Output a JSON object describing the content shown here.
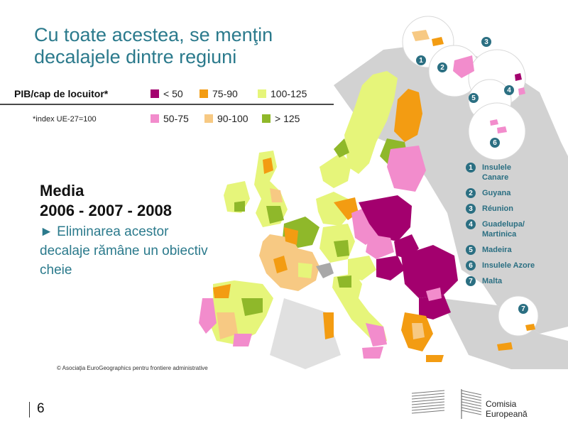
{
  "title": {
    "line1": "Cu toate acestea, se menţin",
    "line2": "decalajele dintre regiuni"
  },
  "legend": {
    "header": "PIB/cap de locuitor*",
    "note": "*index UE-27=100",
    "items": [
      {
        "label": "< 50",
        "color": "#a3006e"
      },
      {
        "label": "75-90",
        "color": "#f39c12"
      },
      {
        "label": "100-125",
        "color": "#e6f57a"
      },
      {
        "label": "50-75",
        "color": "#f28ccc"
      },
      {
        "label": "90-100",
        "color": "#f7c983"
      },
      {
        "label": "> 125",
        "color": "#8fb82a"
      }
    ]
  },
  "media": {
    "heading1": "Media",
    "heading2": "2006 - 2007 - 2008",
    "text": "► Eliminarea acestor decalaje rămâne un obiectiv cheie"
  },
  "islands": [
    {
      "num": "1",
      "label": "Insulele Canare"
    },
    {
      "num": "2",
      "label": "Guyana"
    },
    {
      "num": "3",
      "label": "Réunion"
    },
    {
      "num": "4",
      "label": "Guadelupa/ Martinica"
    },
    {
      "num": "5",
      "label": "Madeira"
    },
    {
      "num": "6",
      "label": "Insulele Azore"
    },
    {
      "num": "7",
      "label": "Malta"
    }
  ],
  "copyright": "© Asociaţia EuroGeographics pentru frontiere administrative",
  "slide_number": "6",
  "org": {
    "line1": "Comisia",
    "line2": "Europeană"
  },
  "colors": {
    "accent": "#2b7a8c",
    "land_other": "#a8a8a8",
    "sea": "#e8e8e8"
  }
}
